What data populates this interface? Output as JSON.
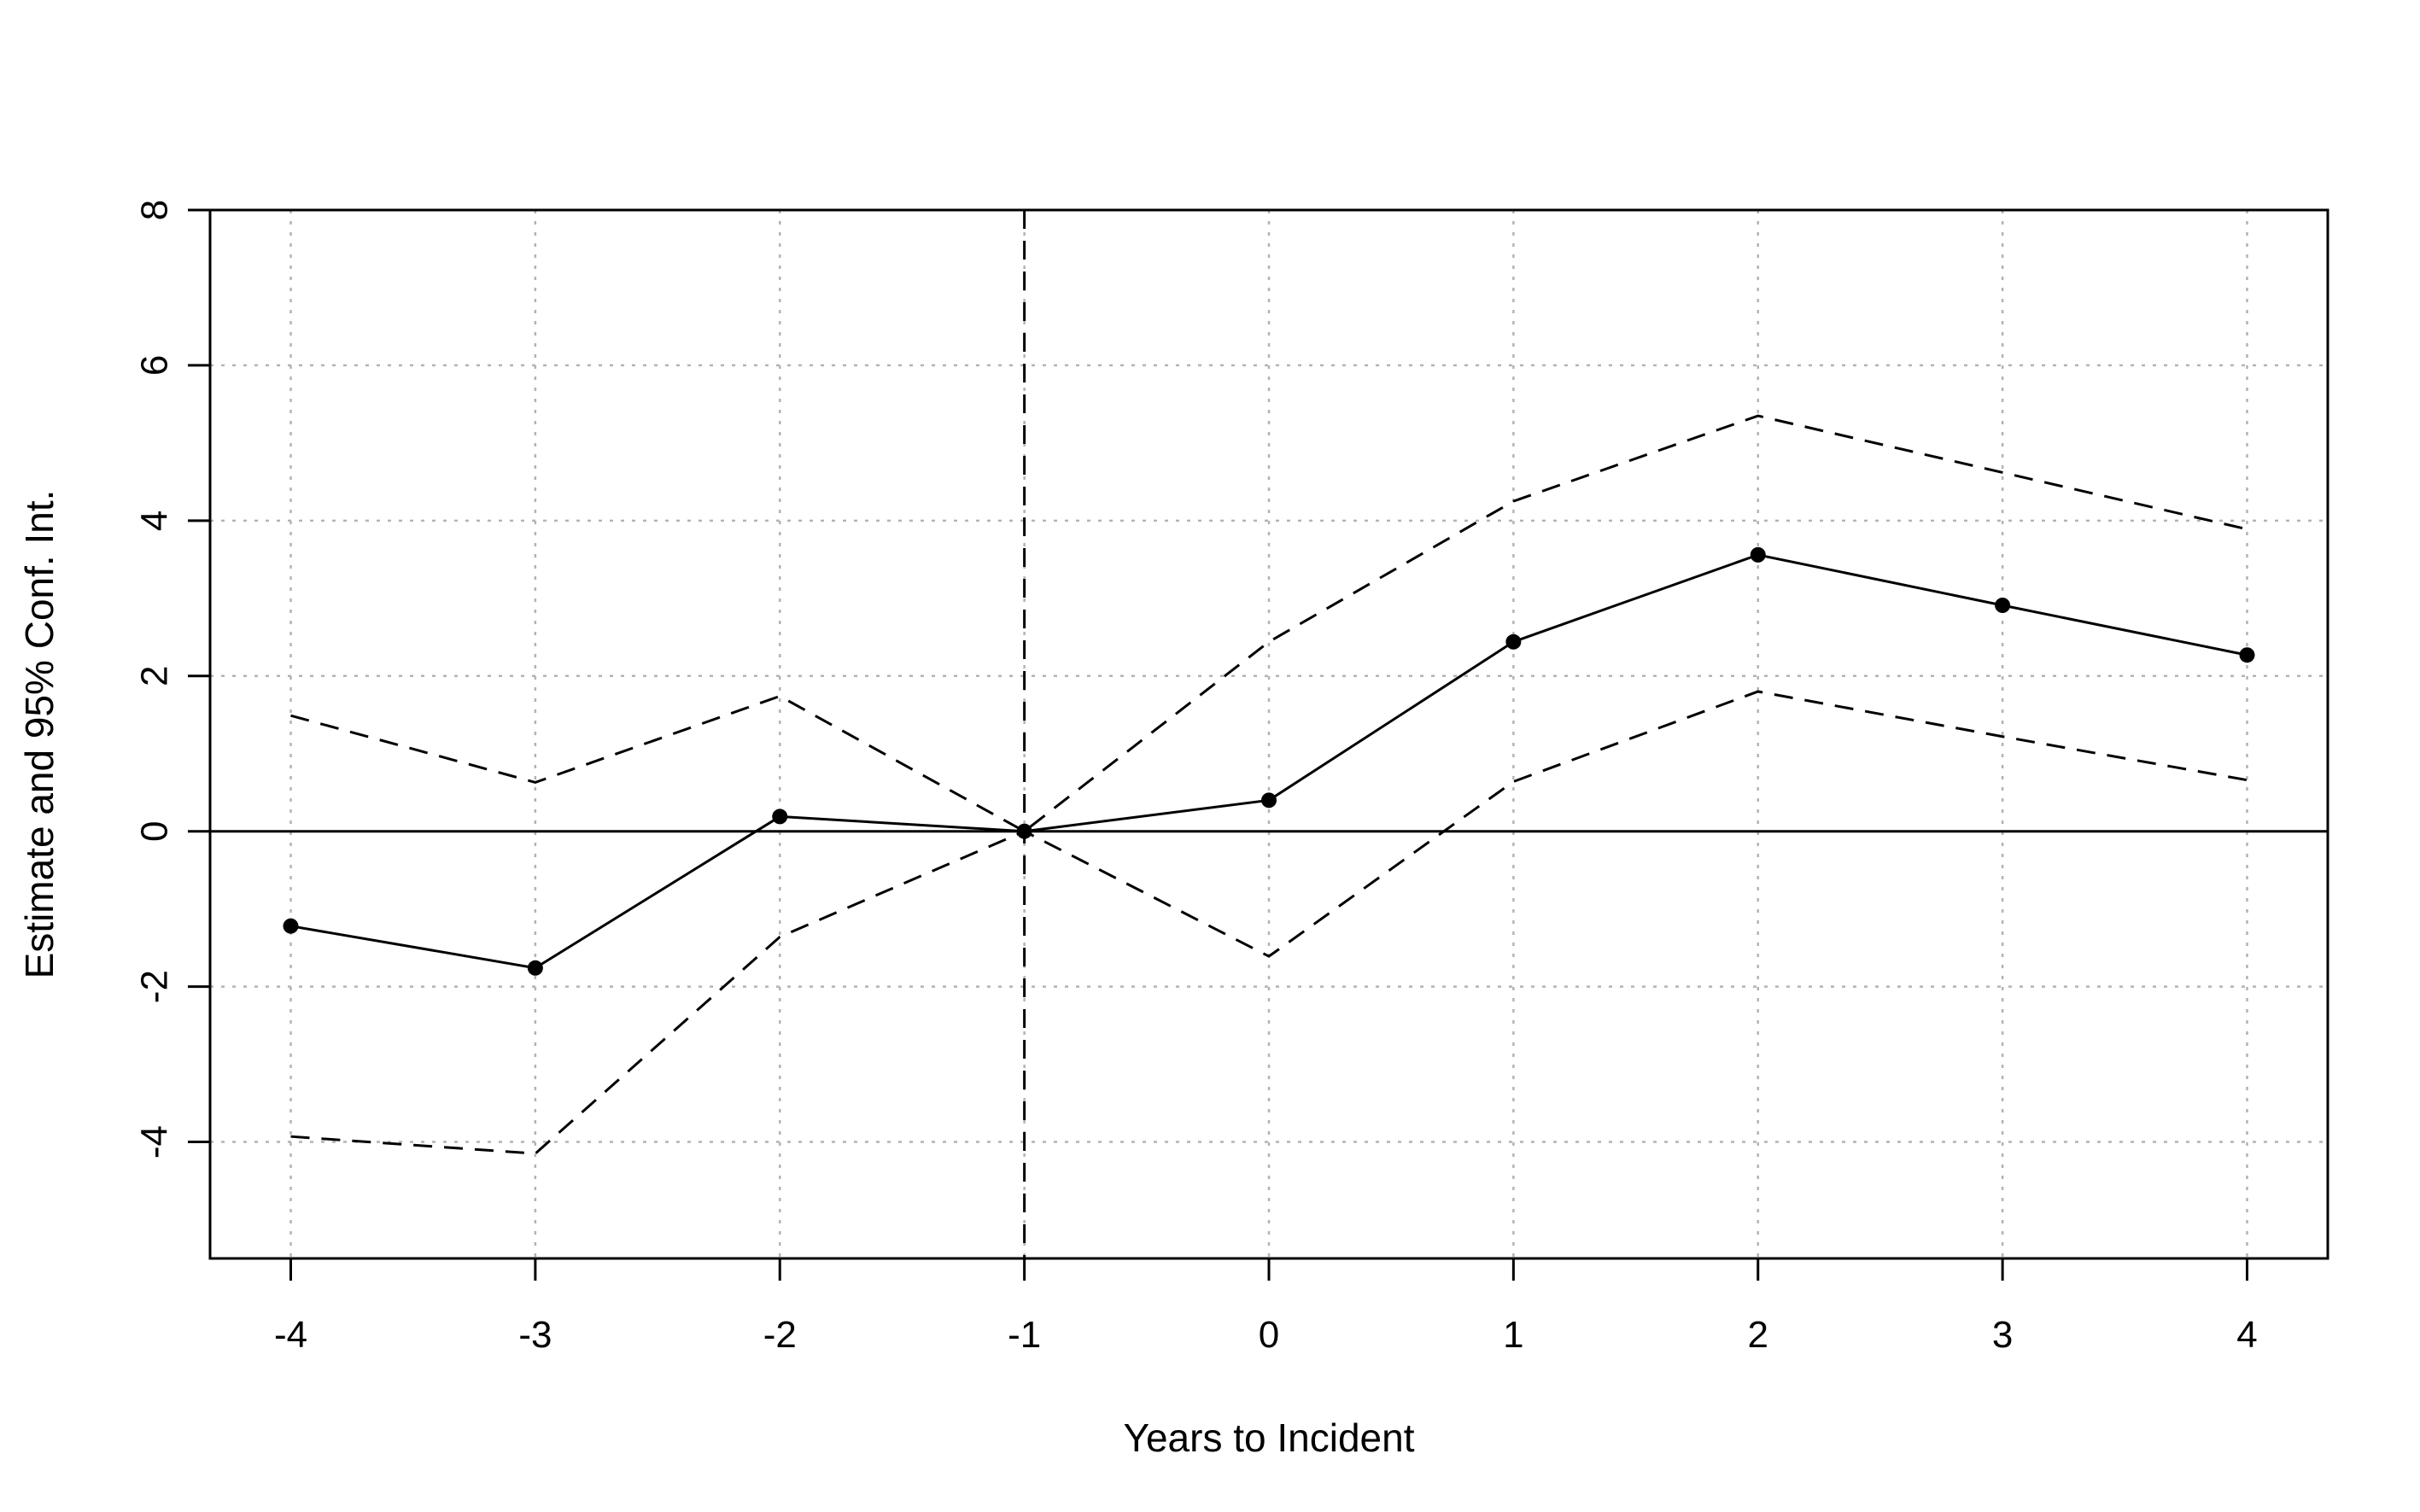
{
  "chart_data": {
    "type": "line",
    "title": "",
    "xlabel": "Years to Incident",
    "ylabel": "Estimate and 95% Conf. Int.",
    "x": [
      -4,
      -3,
      -2,
      -1,
      0,
      1,
      2,
      3,
      4
    ],
    "x_tick_labels": [
      "-4",
      "-3",
      "-2",
      "-1",
      "0",
      "1",
      "2",
      "3",
      "4"
    ],
    "y_tick_labels": [
      "-4",
      "-2",
      "0",
      "2",
      "4",
      "6",
      "8"
    ],
    "xlim": [
      -4.33,
      4.33
    ],
    "ylim": [
      -5.5,
      8
    ],
    "grid": true,
    "reference_lines": {
      "horizontal_y": 0,
      "vertical_x": -1
    },
    "series": [
      {
        "values": [
          -1.22,
          -1.76,
          0.19,
          0.0,
          0.4,
          2.44,
          3.56,
          2.91,
          2.27
        ],
        "style": "solid",
        "markers": true,
        "color": "#000000"
      },
      {
        "values": [
          1.49,
          0.63,
          1.74,
          0.0,
          2.44,
          4.25,
          5.35,
          4.62,
          3.89
        ],
        "style": "dashed",
        "markers": false,
        "color": "#000000"
      },
      {
        "values": [
          -3.93,
          -4.15,
          -1.36,
          0.0,
          -1.61,
          0.64,
          1.8,
          1.22,
          0.66
        ],
        "style": "dashed",
        "markers": false,
        "color": "#000000"
      }
    ]
  }
}
